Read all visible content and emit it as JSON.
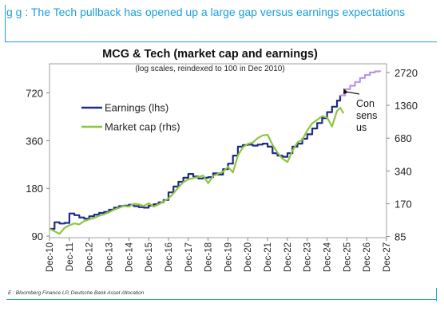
{
  "header": {
    "headline": "g        g  : The Tech pullback has opened up a large gap versus earnings expectations"
  },
  "footer": {
    "source": "E        : Bloomberg Finance LP, Deutsche Bank Asset Allocation"
  },
  "chart_data": {
    "type": "line",
    "title": "MCG & Tech (market cap and earnings)",
    "subtitle": "(log scales, reindexed to 100 in Dec 2010)",
    "x_tick_labels": [
      "Dec-10",
      "Dec-11",
      "Dec-12",
      "Dec-13",
      "Dec-14",
      "Dec-15",
      "Dec-16",
      "Dec-17",
      "Dec-18",
      "Dec-19",
      "Dec-20",
      "Dec-21",
      "Dec-22",
      "Dec-23",
      "Dec-24",
      "Dec-25",
      "Dec-26",
      "Dec-27"
    ],
    "x_range": [
      2010.917,
      2027.917
    ],
    "y_left": {
      "scale": "log",
      "ticks": [
        90,
        180,
        360,
        720
      ],
      "range": [
        88,
        1100
      ]
    },
    "y_right": {
      "scale": "log",
      "ticks": [
        85,
        170,
        340,
        680,
        1360,
        2720
      ],
      "range": [
        83,
        3270
      ]
    },
    "series": [
      {
        "name": "Earnings (lhs)",
        "axis": "left",
        "color": "#1f2a86",
        "step": true,
        "points": [
          [
            2010.92,
            100
          ],
          [
            2011.17,
            110
          ],
          [
            2011.42,
            108
          ],
          [
            2011.67,
            109
          ],
          [
            2011.92,
            125
          ],
          [
            2012.17,
            122
          ],
          [
            2012.42,
            118
          ],
          [
            2012.67,
            116
          ],
          [
            2012.92,
            120
          ],
          [
            2013.17,
            123
          ],
          [
            2013.42,
            126
          ],
          [
            2013.67,
            128
          ],
          [
            2013.92,
            132
          ],
          [
            2014.17,
            136
          ],
          [
            2014.42,
            139
          ],
          [
            2014.67,
            140
          ],
          [
            2014.92,
            142
          ],
          [
            2015.17,
            139
          ],
          [
            2015.42,
            137
          ],
          [
            2015.67,
            136
          ],
          [
            2015.92,
            140
          ],
          [
            2016.17,
            143
          ],
          [
            2016.42,
            147
          ],
          [
            2016.67,
            152
          ],
          [
            2016.92,
            170
          ],
          [
            2017.17,
            185
          ],
          [
            2017.42,
            198
          ],
          [
            2017.67,
            210
          ],
          [
            2017.92,
            222
          ],
          [
            2018.17,
            214
          ],
          [
            2018.42,
            208
          ],
          [
            2018.67,
            210
          ],
          [
            2018.92,
            212
          ],
          [
            2019.17,
            224
          ],
          [
            2019.42,
            220
          ],
          [
            2019.67,
            238
          ],
          [
            2019.92,
            258
          ],
          [
            2020.17,
            290
          ],
          [
            2020.42,
            330
          ],
          [
            2020.67,
            338
          ],
          [
            2020.92,
            340
          ],
          [
            2021.17,
            335
          ],
          [
            2021.42,
            340
          ],
          [
            2021.67,
            345
          ],
          [
            2021.92,
            330
          ],
          [
            2022.17,
            300
          ],
          [
            2022.42,
            290
          ],
          [
            2022.67,
            285
          ],
          [
            2022.92,
            300
          ],
          [
            2023.17,
            330
          ],
          [
            2023.42,
            345
          ],
          [
            2023.67,
            370
          ],
          [
            2023.92,
            395
          ],
          [
            2024.17,
            430
          ],
          [
            2024.42,
            465
          ],
          [
            2024.67,
            500
          ],
          [
            2024.92,
            545
          ],
          [
            2025.17,
            590
          ],
          [
            2025.42,
            645
          ],
          [
            2025.58,
            695
          ]
        ]
      },
      {
        "name": "Market cap (rhs)",
        "axis": "right",
        "color": "#8cc63f",
        "step": false,
        "points": [
          [
            2010.92,
            100
          ],
          [
            2011.17,
            95
          ],
          [
            2011.42,
            90
          ],
          [
            2011.67,
            102
          ],
          [
            2011.92,
            108
          ],
          [
            2012.17,
            112
          ],
          [
            2012.42,
            110
          ],
          [
            2012.67,
            118
          ],
          [
            2012.92,
            122
          ],
          [
            2013.17,
            126
          ],
          [
            2013.42,
            132
          ],
          [
            2013.67,
            136
          ],
          [
            2013.92,
            142
          ],
          [
            2014.17,
            150
          ],
          [
            2014.42,
            156
          ],
          [
            2014.67,
            162
          ],
          [
            2014.92,
            160
          ],
          [
            2015.17,
            170
          ],
          [
            2015.42,
            168
          ],
          [
            2015.67,
            162
          ],
          [
            2015.92,
            172
          ],
          [
            2016.17,
            160
          ],
          [
            2016.42,
            168
          ],
          [
            2016.67,
            178
          ],
          [
            2016.92,
            190
          ],
          [
            2017.17,
            212
          ],
          [
            2017.42,
            240
          ],
          [
            2017.67,
            268
          ],
          [
            2017.92,
            285
          ],
          [
            2018.17,
            292
          ],
          [
            2018.42,
            300
          ],
          [
            2018.67,
            308
          ],
          [
            2018.92,
            262
          ],
          [
            2019.17,
            305
          ],
          [
            2019.42,
            320
          ],
          [
            2019.67,
            335
          ],
          [
            2019.92,
            370
          ],
          [
            2020.17,
            330
          ],
          [
            2020.42,
            470
          ],
          [
            2020.67,
            560
          ],
          [
            2020.92,
            600
          ],
          [
            2021.17,
            620
          ],
          [
            2021.42,
            680
          ],
          [
            2021.67,
            720
          ],
          [
            2021.92,
            730
          ],
          [
            2022.17,
            590
          ],
          [
            2022.42,
            500
          ],
          [
            2022.67,
            440
          ],
          [
            2022.92,
            410
          ],
          [
            2023.17,
            520
          ],
          [
            2023.42,
            620
          ],
          [
            2023.67,
            660
          ],
          [
            2023.92,
            800
          ],
          [
            2024.17,
            930
          ],
          [
            2024.42,
            1000
          ],
          [
            2024.67,
            1080
          ],
          [
            2024.92,
            1050
          ],
          [
            2025.17,
            870
          ],
          [
            2025.42,
            1210
          ],
          [
            2025.58,
            1290
          ],
          [
            2025.75,
            1150
          ]
        ]
      },
      {
        "name": "Consensus",
        "axis": "left",
        "color": "#b896e8",
        "step": true,
        "points": [
          [
            2025.58,
            695
          ],
          [
            2025.83,
            760
          ],
          [
            2026.08,
            800
          ],
          [
            2026.33,
            845
          ],
          [
            2026.58,
            895
          ],
          [
            2026.83,
            935
          ],
          [
            2027.08,
            970
          ],
          [
            2027.33,
            985
          ],
          [
            2027.6,
            980
          ]
        ]
      }
    ],
    "legend": [
      {
        "label": "Earnings (lhs)",
        "color": "#1f2a86"
      },
      {
        "label": "Market cap (rhs)",
        "color": "#8cc63f"
      }
    ],
    "annotation": {
      "lines": [
        "Con",
        "sens",
        "us"
      ],
      "arrow_to": [
        2025.75,
        790
      ]
    }
  }
}
